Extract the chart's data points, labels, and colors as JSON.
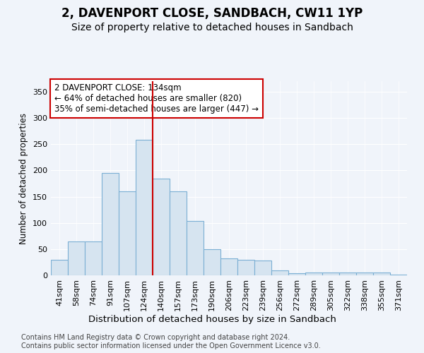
{
  "title": "2, DAVENPORT CLOSE, SANDBACH, CW11 1YP",
  "subtitle": "Size of property relative to detached houses in Sandbach",
  "xlabel": "Distribution of detached houses by size in Sandbach",
  "ylabel": "Number of detached properties",
  "categories": [
    "41sqm",
    "58sqm",
    "74sqm",
    "91sqm",
    "107sqm",
    "124sqm",
    "140sqm",
    "157sqm",
    "173sqm",
    "190sqm",
    "206sqm",
    "223sqm",
    "239sqm",
    "256sqm",
    "272sqm",
    "289sqm",
    "305sqm",
    "322sqm",
    "338sqm",
    "355sqm",
    "371sqm"
  ],
  "values": [
    30,
    65,
    65,
    195,
    160,
    258,
    185,
    160,
    103,
    50,
    32,
    30,
    28,
    10,
    4,
    5,
    5,
    6,
    5,
    6,
    2
  ],
  "bar_color": "#d6e4f0",
  "bar_edge_color": "#7bafd4",
  "bar_edge_width": 0.8,
  "vline_x": 5.5,
  "vline_color": "#cc0000",
  "annotation_text": "2 DAVENPORT CLOSE: 134sqm\n← 64% of detached houses are smaller (820)\n35% of semi-detached houses are larger (447) →",
  "annotation_fontsize": 8.5,
  "annotation_box_color": "white",
  "annotation_box_edge_color": "#cc0000",
  "title_fontsize": 12,
  "subtitle_fontsize": 10,
  "xlabel_fontsize": 9.5,
  "ylabel_fontsize": 8.5,
  "tick_fontsize": 8,
  "footer_text": "Contains HM Land Registry data © Crown copyright and database right 2024.\nContains public sector information licensed under the Open Government Licence v3.0.",
  "footer_fontsize": 7,
  "background_color": "#f0f4fa",
  "plot_bg_color": "#f0f4fa",
  "ylim": [
    0,
    370
  ],
  "yticks": [
    0,
    50,
    100,
    150,
    200,
    250,
    300,
    350
  ]
}
